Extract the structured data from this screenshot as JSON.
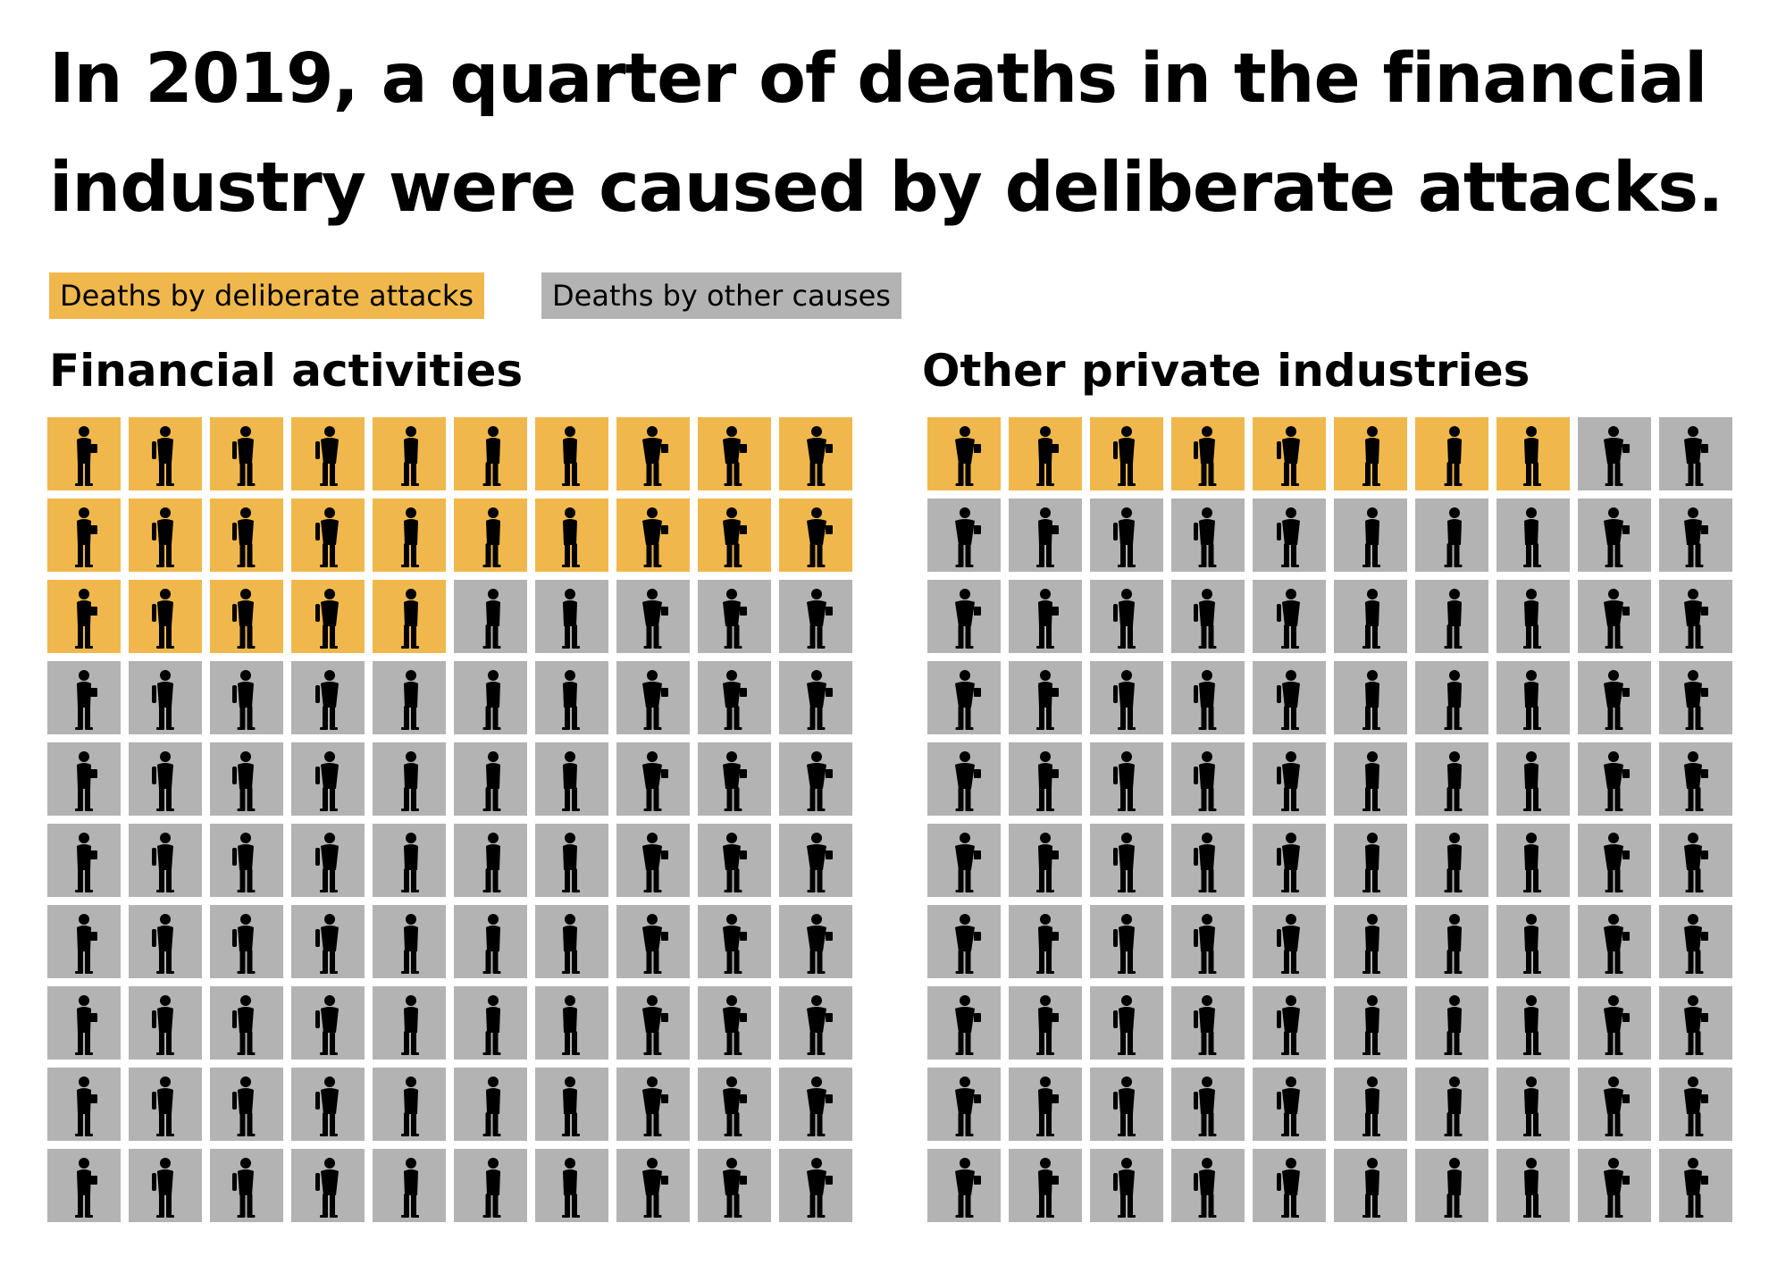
{
  "title": "In 2019, a quarter of deaths in the financial industry were caused by deliberate attacks.",
  "legend": [
    {
      "label": "Deaths by deliberate attacks",
      "color": "#F0B84C"
    },
    {
      "label": "Deaths by other causes",
      "color": "#B3B3B3"
    }
  ],
  "colors": {
    "highlight": "#F0B84C",
    "other": "#B3B3B3",
    "icon": "#000000"
  },
  "icon": "person-silhouette-icon",
  "chart_data": [
    {
      "type": "waffle",
      "title": "Financial activities",
      "rows": 10,
      "cols": 10,
      "total": 100,
      "series": [
        {
          "name": "Deaths by deliberate attacks",
          "value": 25
        },
        {
          "name": "Deaths by other causes",
          "value": 75
        }
      ]
    },
    {
      "type": "waffle",
      "title": "Other private industries",
      "rows": 10,
      "cols": 10,
      "total": 100,
      "series": [
        {
          "name": "Deaths by deliberate attacks",
          "value": 8
        },
        {
          "name": "Deaths by other causes",
          "value": 92
        }
      ]
    }
  ]
}
